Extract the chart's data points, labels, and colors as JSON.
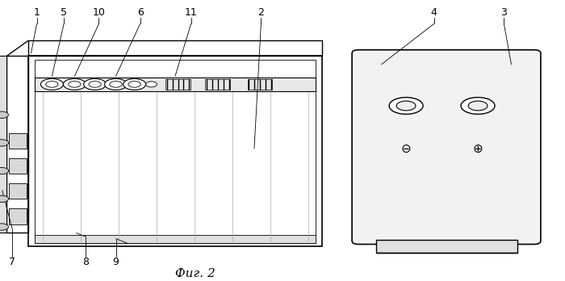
{
  "title": "Фиг. 2",
  "background_color": "#ffffff",
  "line_color": "#000000",
  "label_fontsize": 9,
  "title_fontsize": 11
}
